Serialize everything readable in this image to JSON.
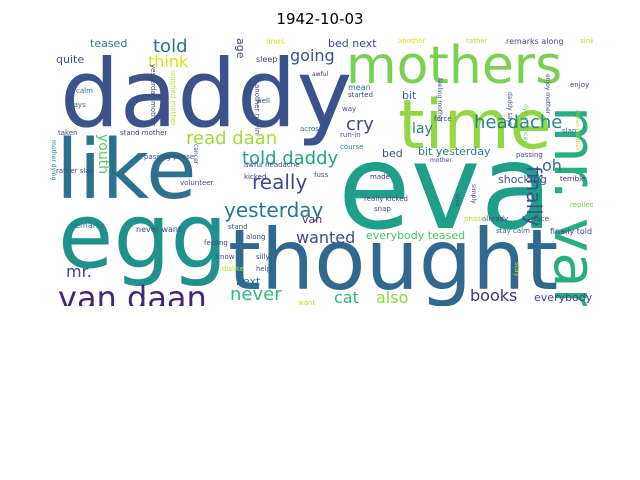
{
  "title": "1942-10-03",
  "palette": {
    "dark_purple": "#482878",
    "navy": "#3e4a89",
    "slate": "#31688e",
    "teal": "#26828e",
    "green_teal": "#1f9e89",
    "green": "#35b779",
    "lime": "#6ece58",
    "yellow_green": "#b5de2b",
    "yellow": "#e6e419"
  },
  "words": [
    {
      "text": "daddy",
      "color": "#3b528b",
      "rot": 0
    },
    {
      "text": "eva",
      "color": "#1f9e89",
      "rot": 0
    },
    {
      "text": "thought",
      "color": "#31688e",
      "rot": 0
    },
    {
      "text": "like",
      "color": "#2c728e",
      "rot": 0
    },
    {
      "text": "egg",
      "color": "#21918c",
      "rot": 0
    },
    {
      "text": "time",
      "color": "#90d743",
      "rot": 0
    },
    {
      "text": "mothers",
      "color": "#7ad151",
      "rot": 0
    },
    {
      "text": "mr. van",
      "color": "#28ae80",
      "rot": 90
    },
    {
      "text": "van daan",
      "color": "#482475",
      "rot": 0
    },
    {
      "text": "yesterday",
      "color": "#2a788e",
      "rot": 0
    },
    {
      "text": "really",
      "color": "#3e4a89",
      "rot": 0
    },
    {
      "text": "told daddy",
      "color": "#21a685",
      "rot": 0
    },
    {
      "text": "headache",
      "color": "#26828e",
      "rot": 0
    },
    {
      "text": "read daan",
      "color": "#a2da37",
      "rot": 0
    },
    {
      "text": "finally",
      "color": "#3b528b",
      "rot": 90
    },
    {
      "text": "never",
      "color": "#35b779",
      "rot": 0
    },
    {
      "text": "going",
      "color": "#3b528b",
      "rot": 0
    },
    {
      "text": "told",
      "color": "#2c728e",
      "rot": 0
    },
    {
      "text": "think",
      "color": "#d8e219",
      "rot": 0
    },
    {
      "text": "cry",
      "color": "#3e4a89",
      "rot": 0
    },
    {
      "text": "wanted",
      "color": "#3e4a89",
      "rot": 0
    },
    {
      "text": "cat",
      "color": "#2fb47c",
      "rot": 0
    },
    {
      "text": "also",
      "color": "#8ed645",
      "rot": 0
    },
    {
      "text": "books",
      "color": "#46327e",
      "rot": 0
    },
    {
      "text": "mr.",
      "color": "#3e4a89",
      "rot": 0
    },
    {
      "text": "youth",
      "color": "#5ec962",
      "rot": 90
    },
    {
      "text": "oh",
      "color": "#2c728e",
      "rot": 0
    },
    {
      "text": "lay",
      "color": "#25848e",
      "rot": 0
    },
    {
      "text": "bit yesterday",
      "color": "#287c8e",
      "rot": 0
    },
    {
      "text": "shocking",
      "color": "#3b528b",
      "rot": 0
    },
    {
      "text": "teased",
      "color": "#2a788e",
      "rot": 0
    },
    {
      "text": "everybody teased",
      "color": "#48c16e",
      "rot": 0
    },
    {
      "text": "everybody",
      "color": "#3e4a89",
      "rot": 0
    },
    {
      "text": "next",
      "color": "#2c728e",
      "rot": 0
    },
    {
      "text": "bed",
      "color": "#3b528b",
      "rot": 0
    },
    {
      "text": "bed next",
      "color": "#3e4a89",
      "rot": 0
    },
    {
      "text": "quite",
      "color": "#3b528b",
      "rot": 0
    },
    {
      "text": "age",
      "color": "#3e4a89",
      "rot": 90
    },
    {
      "text": "van",
      "color": "#46327e",
      "rot": 0
    },
    {
      "text": "bit",
      "color": "#31688e",
      "rot": 0
    },
    {
      "text": "lines",
      "color": "#d8e219",
      "rot": 0
    },
    {
      "text": "another",
      "color": "#d8e219",
      "rot": 0
    },
    {
      "text": "rather",
      "color": "#b5de2b",
      "rot": 0
    },
    {
      "text": "remarks along",
      "color": "#3e4a89",
      "rot": 0
    },
    {
      "text": "sink",
      "color": "#b5de2b",
      "rot": 0
    },
    {
      "text": "enjoy",
      "color": "#3e4a89",
      "rot": 0
    },
    {
      "text": "sleep",
      "color": "#46327e",
      "rot": 0
    },
    {
      "text": "awful",
      "color": "#482878",
      "rot": 0
    },
    {
      "text": "mean",
      "color": "#2c728e",
      "rot": 0
    },
    {
      "text": "started",
      "color": "#3e4a89",
      "rot": 0
    },
    {
      "text": "way",
      "color": "#3b528b",
      "rot": 0
    },
    {
      "text": "well",
      "color": "#3e4a89",
      "rot": 0
    },
    {
      "text": "across",
      "color": "#2c728e",
      "rot": 0
    },
    {
      "text": "run-in",
      "color": "#3e4a89",
      "rot": 0
    },
    {
      "text": "course",
      "color": "#26828e",
      "rot": 0
    },
    {
      "text": "fuss",
      "color": "#3e4a89",
      "rot": 0
    },
    {
      "text": "made",
      "color": "#46327e",
      "rot": 0
    },
    {
      "text": "force",
      "color": "#3e4a89",
      "rot": 0
    },
    {
      "text": "terrible",
      "color": "#482878",
      "rot": 0
    },
    {
      "text": "slap",
      "color": "#31688e",
      "rot": 0
    },
    {
      "text": "passing",
      "color": "#3e4a89",
      "rot": 0
    },
    {
      "text": "replied",
      "color": "#6ece58",
      "rot": 0
    },
    {
      "text": "face",
      "color": "#3e4a89",
      "rot": 0
    },
    {
      "text": "finally told",
      "color": "#3e4a89",
      "rot": 0
    },
    {
      "text": "already",
      "color": "#3e4a89",
      "rot": 0
    },
    {
      "text": "stay calm",
      "color": "#2c728e",
      "rot": 0
    },
    {
      "text": "stay",
      "color": "#b5de2b",
      "rot": 90
    },
    {
      "text": "phase",
      "color": "#b5de2b",
      "rot": 0
    },
    {
      "text": "snap",
      "color": "#3e4a89",
      "rot": 0
    },
    {
      "text": "really kicked",
      "color": "#3e4a89",
      "rot": 0
    },
    {
      "text": "awful headache",
      "color": "#3e4a89",
      "rot": 0
    },
    {
      "text": "kicked",
      "color": "#46327e",
      "rot": 0
    },
    {
      "text": "along",
      "color": "#3e4a89",
      "rot": 0
    },
    {
      "text": "silly",
      "color": "#3e4a89",
      "rot": 0
    },
    {
      "text": "help",
      "color": "#3e4a89",
      "rot": 0
    },
    {
      "text": "dislike",
      "color": "#b5de2b",
      "rot": 0
    },
    {
      "text": "feeling",
      "color": "#3e4a89",
      "rot": 0
    },
    {
      "text": "know",
      "color": "#3e4a89",
      "rot": 0
    },
    {
      "text": "stand",
      "color": "#3e4a89",
      "rot": 0
    },
    {
      "text": "want",
      "color": "#b5de2b",
      "rot": 0
    },
    {
      "text": "never want",
      "color": "#3e4a89",
      "rot": 0
    },
    {
      "text": "remarks",
      "color": "#2c728e",
      "rot": 0
    },
    {
      "text": "volunteer",
      "color": "#3e4a89",
      "rot": 0
    },
    {
      "text": "stand mother",
      "color": "#3e4a89",
      "rot": 0
    },
    {
      "text": "taken",
      "color": "#3e4a89",
      "rot": 0
    },
    {
      "text": "says",
      "color": "#2c728e",
      "rot": 0
    },
    {
      "text": "calm",
      "color": "#2c728e",
      "rot": 0
    },
    {
      "text": "rather slap",
      "color": "#3e4a89",
      "rot": 0
    },
    {
      "text": "passing phase",
      "color": "#3e4a89",
      "rot": 0
    },
    {
      "text": "mother dying",
      "color": "#26828e",
      "rot": 90
    },
    {
      "text": "yesterday mother",
      "color": "#3e4a89",
      "rot": 90
    },
    {
      "text": "laughed mother",
      "color": "#b5de2b",
      "rot": 90
    },
    {
      "text": "another run-in",
      "color": "#3e4a89",
      "rot": 90
    },
    {
      "text": "dying cancer",
      "color": "#6ece58",
      "rot": 90
    },
    {
      "text": "enjoy mother",
      "color": "#3e4a89",
      "rot": 90
    },
    {
      "text": "daddy says",
      "color": "#3e4a89",
      "rot": 90
    },
    {
      "text": "simply",
      "color": "#3e4a89",
      "rot": 90
    },
    {
      "text": "love",
      "color": "#3e4a89",
      "rot": 90
    },
    {
      "text": "mother",
      "color": "#3e4a89",
      "rot": 0
    },
    {
      "text": "terrible dislike",
      "color": "#b5de2b",
      "rot": 90
    },
    {
      "text": "feeling mother",
      "color": "#3e4a89",
      "rot": 90
    },
    {
      "text": "mean mother",
      "color": "#b5de2b",
      "rot": 90
    },
    {
      "text": "cancer",
      "color": "#3e4a89",
      "rot": 90
    }
  ]
}
